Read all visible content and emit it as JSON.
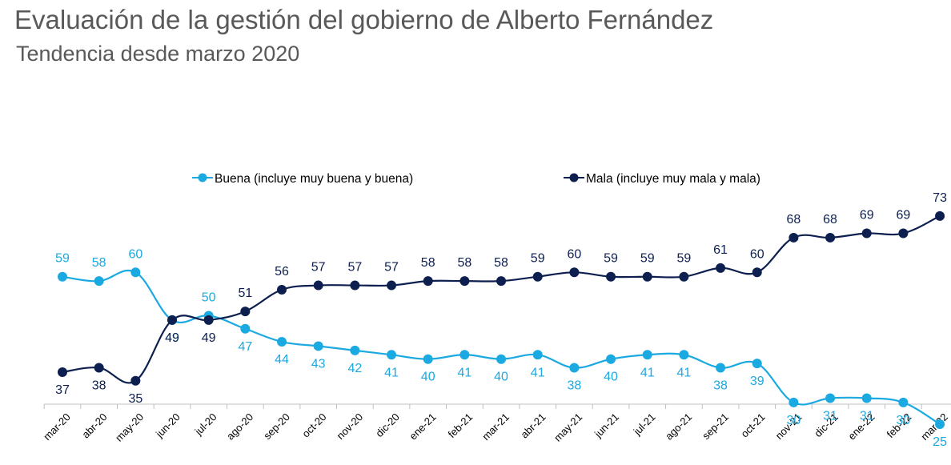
{
  "title": "Evaluación de la gestión del gobierno de Alberto Fernández",
  "subtitle": "Tendencia desde marzo 2020",
  "chart_data": {
    "type": "line",
    "x": [
      "mar-20",
      "abr-20",
      "may-20",
      "jun-20",
      "jul-20",
      "ago-20",
      "sep-20",
      "oct-20",
      "nov-20",
      "dic-20",
      "ene-21",
      "feb-21",
      "mar-21",
      "abr-21",
      "may-21",
      "jun-21",
      "jul-21",
      "ago-21",
      "sep-21",
      "oct-21",
      "nov-21",
      "dic-21",
      "ene-22",
      "feb-22",
      "mar-22"
    ],
    "series": [
      {
        "name": "Buena (incluye muy buena y buena)",
        "color": "#1BA9E1",
        "values": [
          59,
          58,
          60,
          49,
          50,
          47,
          44,
          43,
          42,
          41,
          40,
          41,
          40,
          41,
          38,
          40,
          41,
          41,
          38,
          39,
          30,
          31,
          31,
          30,
          25
        ]
      },
      {
        "name": "Mala (incluye muy mala y mala)",
        "color": "#0C1F4F",
        "values": [
          37,
          38,
          35,
          49,
          49,
          51,
          56,
          57,
          57,
          57,
          58,
          58,
          58,
          59,
          60,
          59,
          59,
          59,
          61,
          60,
          68,
          68,
          69,
          69,
          73
        ]
      }
    ],
    "legend_position": "top-center",
    "grid": false
  }
}
